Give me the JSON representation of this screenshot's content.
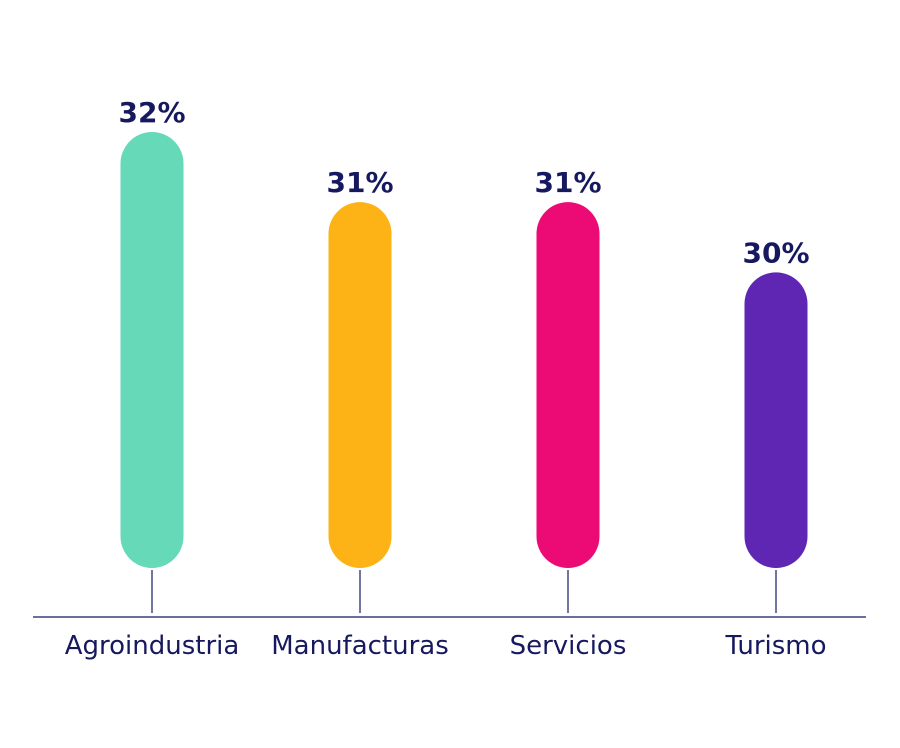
{
  "chart_data": {
    "type": "bar",
    "title": "",
    "xlabel": "",
    "ylabel": "",
    "categories": [
      "Agroindustria",
      "Manufacturas",
      "Servicios",
      "Turismo"
    ],
    "values": [
      32,
      31,
      31,
      30
    ],
    "value_labels": [
      "32%",
      "31%",
      "31%",
      "30%"
    ],
    "colors": [
      "#66d9b8",
      "#fdb316",
      "#ec0a74",
      "#5e26b3"
    ],
    "label_color": "#16195e",
    "axis_color": "#16195e",
    "ylim": [
      0,
      32
    ],
    "grid": false,
    "legend": "none"
  }
}
